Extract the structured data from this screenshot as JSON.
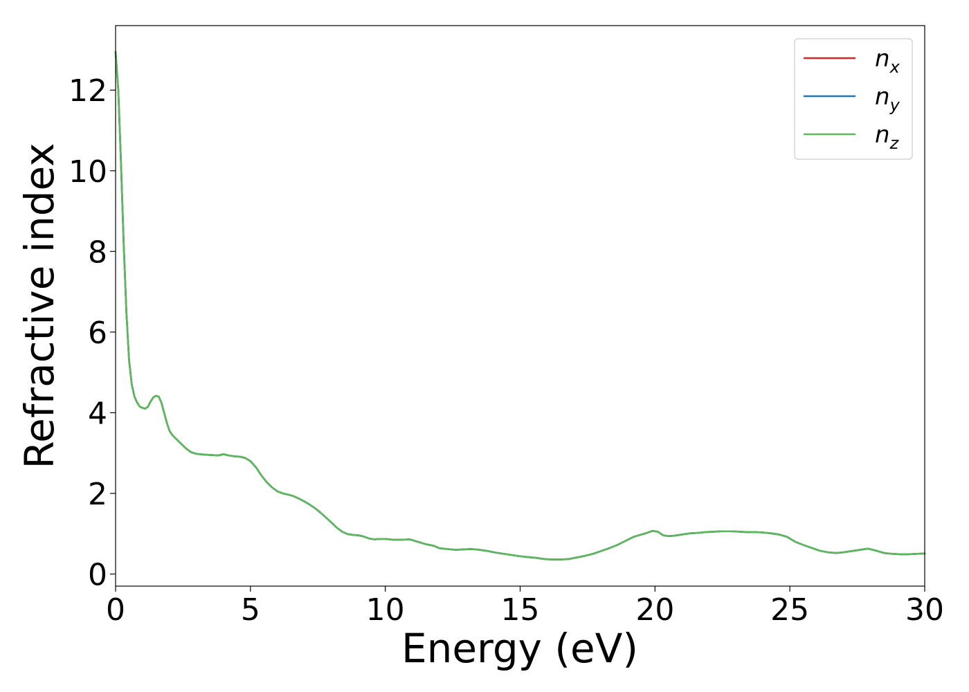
{
  "chart_data": {
    "type": "line",
    "title": "",
    "xlabel": "Energy (eV)",
    "ylabel": "Refractive index",
    "xlim": [
      0,
      30
    ],
    "ylim": [
      -0.3,
      13.6
    ],
    "xticks": [
      0,
      5,
      10,
      15,
      20,
      25,
      30
    ],
    "yticks": [
      0,
      2,
      4,
      6,
      8,
      10,
      12
    ],
    "grid": false,
    "legend_position": "top-right",
    "x": [
      0.0,
      0.1,
      0.2,
      0.3,
      0.4,
      0.5,
      0.6,
      0.7,
      0.8,
      0.9,
      1.0,
      1.1,
      1.2,
      1.3,
      1.4,
      1.5,
      1.6,
      1.7,
      1.8,
      1.9,
      2.0,
      2.1,
      2.2,
      2.4,
      2.6,
      2.8,
      3.0,
      3.3,
      3.6,
      3.8,
      4.0,
      4.2,
      4.4,
      4.6,
      4.8,
      5.0,
      5.2,
      5.4,
      5.6,
      5.8,
      6.0,
      6.2,
      6.4,
      6.6,
      6.8,
      7.0,
      7.2,
      7.4,
      7.6,
      7.8,
      8.0,
      8.2,
      8.4,
      8.6,
      8.8,
      9.0,
      9.2,
      9.4,
      9.6,
      9.8,
      10.0,
      10.3,
      10.6,
      10.9,
      11.2,
      11.5,
      11.8,
      12.0,
      12.3,
      12.6,
      12.9,
      13.2,
      13.5,
      13.8,
      14.1,
      14.4,
      14.7,
      15.0,
      15.3,
      15.6,
      15.9,
      16.2,
      16.5,
      16.8,
      17.1,
      17.4,
      17.7,
      18.0,
      18.3,
      18.6,
      18.9,
      19.2,
      19.5,
      19.7,
      19.9,
      20.1,
      20.3,
      20.5,
      20.7,
      21.0,
      21.3,
      21.6,
      21.9,
      22.2,
      22.5,
      22.8,
      23.1,
      23.4,
      23.7,
      24.0,
      24.3,
      24.6,
      24.9,
      25.2,
      25.5,
      25.8,
      26.1,
      26.4,
      26.7,
      27.0,
      27.3,
      27.6,
      27.9,
      28.2,
      28.5,
      28.8,
      29.1,
      29.4,
      29.7,
      30.0
    ],
    "series": [
      {
        "name": "n_x",
        "color": "#d62728",
        "y": [
          12.95,
          12.0,
          10.2,
          8.2,
          6.5,
          5.3,
          4.7,
          4.4,
          4.25,
          4.15,
          4.12,
          4.1,
          4.15,
          4.28,
          4.38,
          4.42,
          4.4,
          4.25,
          4.0,
          3.75,
          3.55,
          3.45,
          3.38,
          3.25,
          3.12,
          3.02,
          2.98,
          2.96,
          2.95,
          2.94,
          2.97,
          2.94,
          2.92,
          2.91,
          2.88,
          2.8,
          2.65,
          2.45,
          2.28,
          2.15,
          2.05,
          2.0,
          1.97,
          1.93,
          1.87,
          1.8,
          1.72,
          1.63,
          1.52,
          1.4,
          1.28,
          1.15,
          1.05,
          0.99,
          0.97,
          0.96,
          0.93,
          0.88,
          0.86,
          0.87,
          0.87,
          0.85,
          0.85,
          0.86,
          0.8,
          0.74,
          0.7,
          0.64,
          0.62,
          0.6,
          0.61,
          0.62,
          0.6,
          0.57,
          0.53,
          0.5,
          0.47,
          0.44,
          0.42,
          0.4,
          0.37,
          0.36,
          0.36,
          0.37,
          0.41,
          0.45,
          0.5,
          0.57,
          0.64,
          0.72,
          0.82,
          0.92,
          0.98,
          1.02,
          1.07,
          1.05,
          0.96,
          0.94,
          0.95,
          0.98,
          1.01,
          1.02,
          1.04,
          1.05,
          1.06,
          1.06,
          1.05,
          1.04,
          1.04,
          1.03,
          1.01,
          0.98,
          0.92,
          0.8,
          0.72,
          0.65,
          0.58,
          0.54,
          0.52,
          0.54,
          0.57,
          0.6,
          0.63,
          0.58,
          0.52,
          0.5,
          0.49,
          0.49,
          0.5,
          0.51
        ]
      },
      {
        "name": "n_y",
        "color": "#1f77b4",
        "y": [
          12.95,
          12.0,
          10.2,
          8.2,
          6.5,
          5.3,
          4.7,
          4.4,
          4.25,
          4.15,
          4.12,
          4.1,
          4.15,
          4.28,
          4.38,
          4.42,
          4.4,
          4.25,
          4.0,
          3.75,
          3.55,
          3.45,
          3.38,
          3.25,
          3.12,
          3.02,
          2.98,
          2.96,
          2.95,
          2.94,
          2.97,
          2.94,
          2.92,
          2.91,
          2.88,
          2.8,
          2.65,
          2.45,
          2.28,
          2.15,
          2.05,
          2.0,
          1.97,
          1.93,
          1.87,
          1.8,
          1.72,
          1.63,
          1.52,
          1.4,
          1.28,
          1.15,
          1.05,
          0.99,
          0.97,
          0.96,
          0.93,
          0.88,
          0.86,
          0.87,
          0.87,
          0.85,
          0.85,
          0.86,
          0.8,
          0.74,
          0.7,
          0.64,
          0.62,
          0.6,
          0.61,
          0.62,
          0.6,
          0.57,
          0.53,
          0.5,
          0.47,
          0.44,
          0.42,
          0.4,
          0.37,
          0.36,
          0.36,
          0.37,
          0.41,
          0.45,
          0.5,
          0.57,
          0.64,
          0.72,
          0.82,
          0.92,
          0.98,
          1.02,
          1.07,
          1.05,
          0.96,
          0.94,
          0.95,
          0.98,
          1.01,
          1.02,
          1.04,
          1.05,
          1.06,
          1.06,
          1.05,
          1.04,
          1.04,
          1.03,
          1.01,
          0.98,
          0.92,
          0.8,
          0.72,
          0.65,
          0.58,
          0.54,
          0.52,
          0.54,
          0.57,
          0.6,
          0.63,
          0.58,
          0.52,
          0.5,
          0.49,
          0.49,
          0.5,
          0.51
        ]
      },
      {
        "name": "n_z",
        "color": "#5cb85c",
        "y": [
          12.95,
          12.0,
          10.2,
          8.2,
          6.5,
          5.3,
          4.7,
          4.4,
          4.25,
          4.15,
          4.12,
          4.1,
          4.15,
          4.28,
          4.38,
          4.42,
          4.4,
          4.25,
          4.0,
          3.75,
          3.55,
          3.45,
          3.38,
          3.25,
          3.12,
          3.02,
          2.98,
          2.96,
          2.95,
          2.94,
          2.97,
          2.94,
          2.92,
          2.91,
          2.88,
          2.8,
          2.65,
          2.45,
          2.28,
          2.15,
          2.05,
          2.0,
          1.97,
          1.93,
          1.87,
          1.8,
          1.72,
          1.63,
          1.52,
          1.4,
          1.28,
          1.15,
          1.05,
          0.99,
          0.97,
          0.96,
          0.93,
          0.88,
          0.86,
          0.87,
          0.87,
          0.85,
          0.85,
          0.86,
          0.8,
          0.74,
          0.7,
          0.64,
          0.62,
          0.6,
          0.61,
          0.62,
          0.6,
          0.57,
          0.53,
          0.5,
          0.47,
          0.44,
          0.42,
          0.4,
          0.37,
          0.36,
          0.36,
          0.37,
          0.41,
          0.45,
          0.5,
          0.57,
          0.64,
          0.72,
          0.82,
          0.92,
          0.98,
          1.02,
          1.07,
          1.05,
          0.96,
          0.94,
          0.95,
          0.98,
          1.01,
          1.02,
          1.04,
          1.05,
          1.06,
          1.06,
          1.05,
          1.04,
          1.04,
          1.03,
          1.01,
          0.98,
          0.92,
          0.8,
          0.72,
          0.65,
          0.58,
          0.54,
          0.52,
          0.54,
          0.57,
          0.6,
          0.63,
          0.58,
          0.52,
          0.5,
          0.49,
          0.49,
          0.5,
          0.51
        ]
      }
    ],
    "legend": [
      {
        "base": "n",
        "sub": "x"
      },
      {
        "base": "n",
        "sub": "y"
      },
      {
        "base": "n",
        "sub": "z"
      }
    ]
  }
}
